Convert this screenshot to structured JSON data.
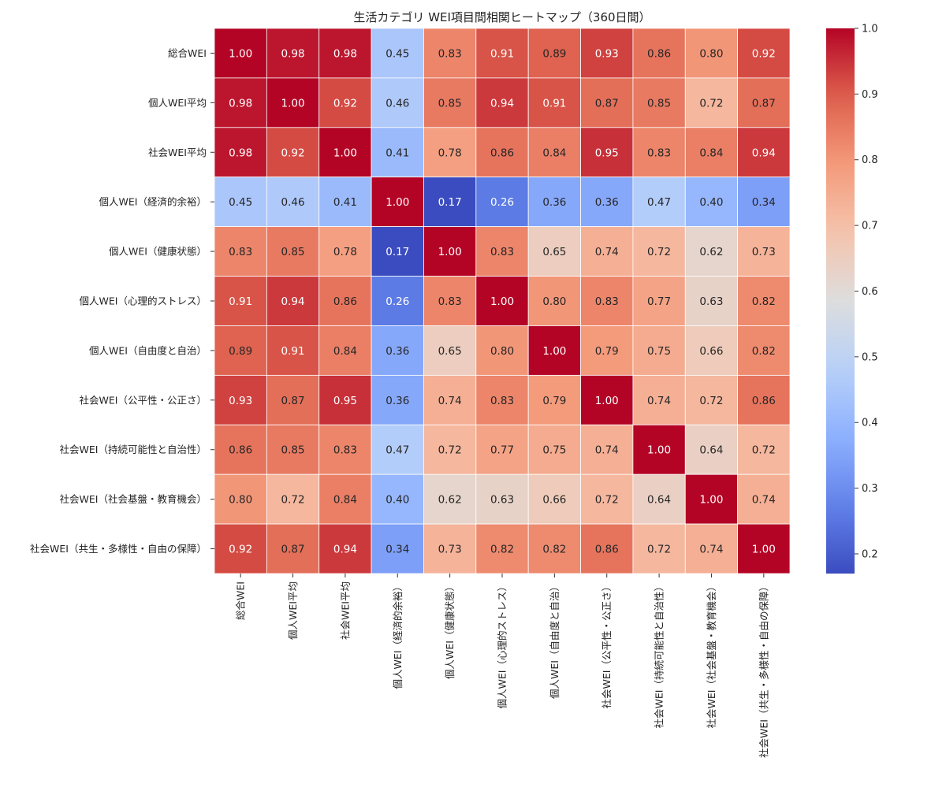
{
  "chart_data": {
    "type": "heatmap",
    "title": "生活カテゴリ WEI項目間相関ヒートマップ（360日間）",
    "xlabel": "",
    "ylabel": "",
    "labels": [
      "総合WEI",
      "個人WEI平均",
      "社会WEI平均",
      "個人WEI（経済的余裕）",
      "個人WEI（健康状態）",
      "個人WEI（心理的ストレス）",
      "個人WEI（自由度と自治）",
      "社会WEI（公平性・公正さ）",
      "社会WEI（持続可能性と自治性）",
      "社会WEI（社会基盤・教育機会）",
      "社会WEI（共生・多様性・自由の保障）"
    ],
    "values": [
      [
        1.0,
        0.98,
        0.98,
        0.45,
        0.83,
        0.91,
        0.89,
        0.93,
        0.86,
        0.8,
        0.92
      ],
      [
        0.98,
        1.0,
        0.92,
        0.46,
        0.85,
        0.94,
        0.91,
        0.87,
        0.85,
        0.72,
        0.87
      ],
      [
        0.98,
        0.92,
        1.0,
        0.41,
        0.78,
        0.86,
        0.84,
        0.95,
        0.83,
        0.84,
        0.94
      ],
      [
        0.45,
        0.46,
        0.41,
        1.0,
        0.17,
        0.26,
        0.36,
        0.36,
        0.47,
        0.4,
        0.34
      ],
      [
        0.83,
        0.85,
        0.78,
        0.17,
        1.0,
        0.83,
        0.65,
        0.74,
        0.72,
        0.62,
        0.73
      ],
      [
        0.91,
        0.94,
        0.86,
        0.26,
        0.83,
        1.0,
        0.8,
        0.83,
        0.77,
        0.63,
        0.82
      ],
      [
        0.89,
        0.91,
        0.84,
        0.36,
        0.65,
        0.8,
        1.0,
        0.79,
        0.75,
        0.66,
        0.82
      ],
      [
        0.93,
        0.87,
        0.95,
        0.36,
        0.74,
        0.83,
        0.79,
        1.0,
        0.74,
        0.72,
        0.86
      ],
      [
        0.86,
        0.85,
        0.83,
        0.47,
        0.72,
        0.77,
        0.75,
        0.74,
        1.0,
        0.64,
        0.72
      ],
      [
        0.8,
        0.72,
        0.84,
        0.4,
        0.62,
        0.63,
        0.66,
        0.72,
        0.64,
        1.0,
        0.74
      ],
      [
        0.92,
        0.87,
        0.94,
        0.34,
        0.73,
        0.82,
        0.82,
        0.86,
        0.72,
        0.74,
        1.0
      ]
    ],
    "colorscale": "coolwarm",
    "vmin": 0.17,
    "vmax": 1.0,
    "colorbar_ticks": [
      0.2,
      0.3,
      0.4,
      0.5,
      0.6,
      0.7,
      0.8,
      0.9,
      1.0
    ],
    "colorbar_tick_labels": [
      "0.2",
      "0.3",
      "0.4",
      "0.5",
      "0.6",
      "0.7",
      "0.8",
      "0.9",
      "1.0"
    ],
    "annotations": true,
    "grid": false,
    "legend": "colorbar-right"
  }
}
